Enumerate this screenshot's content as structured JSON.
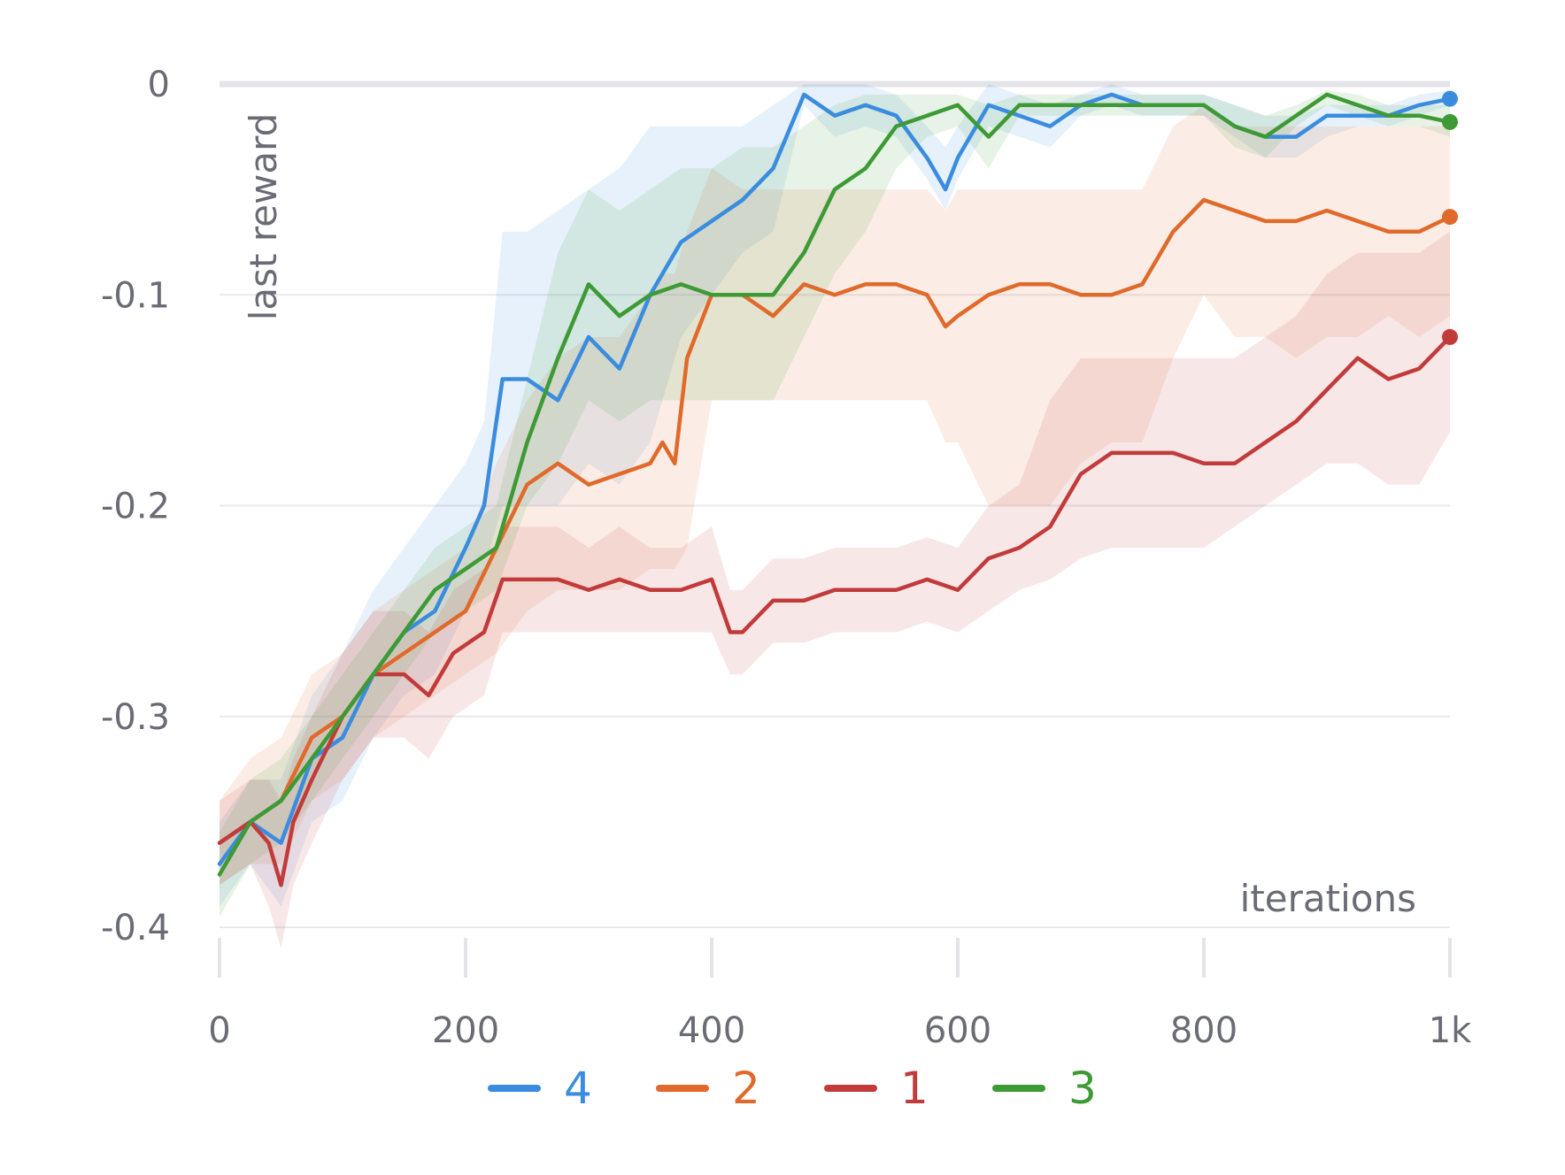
{
  "chart_data": {
    "type": "line",
    "xlabel": "iterations",
    "ylabel": "last reward",
    "xlim": [
      0,
      1000
    ],
    "ylim": [
      -0.4,
      0
    ],
    "x_ticks": [
      0,
      200,
      400,
      600,
      800,
      1000
    ],
    "x_tick_labels": [
      "0",
      "200",
      "400",
      "600",
      "800",
      "1k"
    ],
    "y_ticks": [
      0,
      -0.1,
      -0.2,
      -0.3,
      -0.4
    ],
    "y_tick_labels": [
      "0",
      "-0.1",
      "-0.2",
      "-0.3",
      "-0.4"
    ],
    "grid": true,
    "legend": "bottom-center",
    "series": [
      {
        "name": "4",
        "color": "#3a8dde",
        "x": [
          0,
          25,
          50,
          75,
          100,
          125,
          150,
          175,
          200,
          215,
          230,
          250,
          275,
          300,
          325,
          350,
          375,
          400,
          425,
          450,
          475,
          500,
          525,
          550,
          575,
          590,
          600,
          625,
          650,
          675,
          700,
          725,
          750,
          775,
          800,
          825,
          850,
          875,
          900,
          925,
          950,
          975,
          1000
        ],
        "y": [
          -0.37,
          -0.35,
          -0.36,
          -0.32,
          -0.31,
          -0.28,
          -0.26,
          -0.25,
          -0.22,
          -0.2,
          -0.14,
          -0.14,
          -0.15,
          -0.12,
          -0.135,
          -0.1,
          -0.075,
          -0.065,
          -0.055,
          -0.04,
          -0.005,
          -0.015,
          -0.01,
          -0.015,
          -0.035,
          -0.05,
          -0.035,
          -0.01,
          -0.015,
          -0.02,
          -0.01,
          -0.005,
          -0.01,
          -0.01,
          -0.01,
          -0.02,
          -0.025,
          -0.025,
          -0.015,
          -0.015,
          -0.015,
          -0.01,
          -0.007
        ],
        "band_upper": [
          -0.35,
          -0.33,
          -0.33,
          -0.29,
          -0.27,
          -0.24,
          -0.22,
          -0.2,
          -0.18,
          -0.16,
          -0.07,
          -0.07,
          -0.06,
          -0.05,
          -0.04,
          -0.02,
          -0.02,
          -0.02,
          -0.02,
          -0.01,
          0,
          0,
          0,
          -0.005,
          -0.02,
          -0.03,
          -0.02,
          0,
          -0.005,
          -0.01,
          -0.005,
          0,
          -0.005,
          -0.005,
          -0.005,
          -0.01,
          -0.015,
          -0.015,
          -0.01,
          -0.01,
          -0.01,
          -0.005,
          -0.003
        ],
        "band_lower": [
          -0.39,
          -0.37,
          -0.39,
          -0.35,
          -0.34,
          -0.31,
          -0.29,
          -0.28,
          -0.25,
          -0.23,
          -0.2,
          -0.2,
          -0.2,
          -0.18,
          -0.19,
          -0.17,
          -0.12,
          -0.1,
          -0.08,
          -0.07,
          -0.01,
          -0.025,
          -0.02,
          -0.025,
          -0.045,
          -0.06,
          -0.045,
          -0.02,
          -0.025,
          -0.03,
          -0.015,
          -0.01,
          -0.015,
          -0.015,
          -0.015,
          -0.025,
          -0.035,
          -0.035,
          -0.025,
          -0.02,
          -0.02,
          -0.015,
          -0.01
        ]
      },
      {
        "name": "2",
        "color": "#e06a2b",
        "x": [
          0,
          25,
          50,
          75,
          100,
          125,
          150,
          175,
          200,
          225,
          250,
          275,
          300,
          325,
          350,
          360,
          370,
          380,
          400,
          425,
          450,
          475,
          500,
          525,
          550,
          575,
          590,
          600,
          625,
          650,
          675,
          700,
          725,
          750,
          775,
          800,
          825,
          850,
          875,
          900,
          925,
          950,
          975,
          1000
        ],
        "y": [
          -0.36,
          -0.35,
          -0.34,
          -0.31,
          -0.3,
          -0.28,
          -0.27,
          -0.26,
          -0.25,
          -0.22,
          -0.19,
          -0.18,
          -0.19,
          -0.185,
          -0.18,
          -0.17,
          -0.18,
          -0.13,
          -0.1,
          -0.1,
          -0.11,
          -0.095,
          -0.1,
          -0.095,
          -0.095,
          -0.1,
          -0.115,
          -0.11,
          -0.1,
          -0.095,
          -0.095,
          -0.1,
          -0.1,
          -0.095,
          -0.07,
          -0.055,
          -0.06,
          -0.065,
          -0.065,
          -0.06,
          -0.065,
          -0.07,
          -0.07,
          -0.063
        ],
        "band_upper": [
          -0.34,
          -0.32,
          -0.31,
          -0.28,
          -0.27,
          -0.25,
          -0.24,
          -0.23,
          -0.22,
          -0.18,
          -0.15,
          -0.13,
          -0.12,
          -0.12,
          -0.1,
          -0.09,
          -0.09,
          -0.07,
          -0.04,
          -0.05,
          -0.05,
          -0.05,
          -0.05,
          -0.05,
          -0.05,
          -0.05,
          -0.06,
          -0.05,
          -0.05,
          -0.05,
          -0.05,
          -0.05,
          -0.05,
          -0.05,
          -0.02,
          -0.01,
          -0.02,
          -0.02,
          -0.02,
          -0.02,
          -0.02,
          -0.02,
          -0.02,
          -0.02
        ],
        "band_lower": [
          -0.38,
          -0.37,
          -0.37,
          -0.34,
          -0.33,
          -0.31,
          -0.3,
          -0.29,
          -0.28,
          -0.27,
          -0.25,
          -0.24,
          -0.24,
          -0.24,
          -0.23,
          -0.23,
          -0.23,
          -0.22,
          -0.15,
          -0.15,
          -0.15,
          -0.15,
          -0.15,
          -0.15,
          -0.15,
          -0.15,
          -0.17,
          -0.17,
          -0.2,
          -0.2,
          -0.2,
          -0.18,
          -0.17,
          -0.17,
          -0.13,
          -0.1,
          -0.12,
          -0.12,
          -0.13,
          -0.12,
          -0.12,
          -0.11,
          -0.12,
          -0.11
        ]
      },
      {
        "name": "1",
        "color": "#c23b3b",
        "x": [
          0,
          25,
          40,
          50,
          60,
          75,
          100,
          125,
          150,
          170,
          190,
          215,
          230,
          245,
          275,
          300,
          325,
          350,
          375,
          400,
          415,
          425,
          450,
          475,
          500,
          525,
          550,
          575,
          600,
          625,
          650,
          675,
          700,
          725,
          750,
          775,
          800,
          825,
          850,
          875,
          900,
          925,
          950,
          975,
          1000
        ],
        "y": [
          -0.36,
          -0.35,
          -0.36,
          -0.38,
          -0.35,
          -0.33,
          -0.3,
          -0.28,
          -0.28,
          -0.29,
          -0.27,
          -0.26,
          -0.235,
          -0.235,
          -0.235,
          -0.24,
          -0.235,
          -0.24,
          -0.24,
          -0.235,
          -0.26,
          -0.26,
          -0.245,
          -0.245,
          -0.24,
          -0.24,
          -0.24,
          -0.235,
          -0.24,
          -0.225,
          -0.22,
          -0.21,
          -0.185,
          -0.175,
          -0.175,
          -0.175,
          -0.18,
          -0.18,
          -0.17,
          -0.16,
          -0.145,
          -0.13,
          -0.14,
          -0.135,
          -0.12
        ],
        "band_upper": [
          -0.34,
          -0.33,
          -0.33,
          -0.34,
          -0.32,
          -0.3,
          -0.27,
          -0.25,
          -0.25,
          -0.26,
          -0.24,
          -0.23,
          -0.21,
          -0.21,
          -0.21,
          -0.22,
          -0.21,
          -0.22,
          -0.22,
          -0.21,
          -0.24,
          -0.24,
          -0.225,
          -0.225,
          -0.22,
          -0.22,
          -0.22,
          -0.215,
          -0.22,
          -0.2,
          -0.19,
          -0.15,
          -0.13,
          -0.13,
          -0.13,
          -0.13,
          -0.13,
          -0.13,
          -0.12,
          -0.11,
          -0.09,
          -0.08,
          -0.08,
          -0.08,
          -0.07
        ],
        "band_lower": [
          -0.38,
          -0.37,
          -0.39,
          -0.41,
          -0.38,
          -0.36,
          -0.33,
          -0.31,
          -0.31,
          -0.32,
          -0.3,
          -0.29,
          -0.26,
          -0.26,
          -0.26,
          -0.26,
          -0.26,
          -0.26,
          -0.26,
          -0.26,
          -0.28,
          -0.28,
          -0.265,
          -0.265,
          -0.26,
          -0.26,
          -0.26,
          -0.255,
          -0.26,
          -0.25,
          -0.24,
          -0.235,
          -0.225,
          -0.22,
          -0.22,
          -0.22,
          -0.22,
          -0.21,
          -0.2,
          -0.19,
          -0.18,
          -0.18,
          -0.19,
          -0.19,
          -0.165
        ]
      },
      {
        "name": "3",
        "color": "#3d9a35",
        "x": [
          0,
          25,
          50,
          75,
          100,
          125,
          150,
          175,
          200,
          225,
          250,
          275,
          300,
          325,
          350,
          375,
          400,
          425,
          450,
          475,
          500,
          525,
          550,
          575,
          600,
          625,
          650,
          675,
          700,
          725,
          750,
          775,
          800,
          825,
          850,
          875,
          900,
          925,
          950,
          975,
          1000
        ],
        "y": [
          -0.375,
          -0.35,
          -0.34,
          -0.32,
          -0.3,
          -0.28,
          -0.26,
          -0.24,
          -0.23,
          -0.22,
          -0.17,
          -0.13,
          -0.095,
          -0.11,
          -0.1,
          -0.095,
          -0.1,
          -0.1,
          -0.1,
          -0.08,
          -0.05,
          -0.04,
          -0.02,
          -0.015,
          -0.01,
          -0.025,
          -0.01,
          -0.01,
          -0.01,
          -0.01,
          -0.01,
          -0.01,
          -0.01,
          -0.02,
          -0.025,
          -0.015,
          -0.005,
          -0.01,
          -0.015,
          -0.015,
          -0.018
        ],
        "band_upper": [
          -0.355,
          -0.33,
          -0.32,
          -0.3,
          -0.28,
          -0.26,
          -0.24,
          -0.22,
          -0.21,
          -0.2,
          -0.14,
          -0.08,
          -0.05,
          -0.06,
          -0.05,
          -0.04,
          -0.04,
          -0.03,
          -0.03,
          -0.02,
          -0.01,
          -0.005,
          -0.005,
          -0.005,
          -0.005,
          -0.01,
          -0.005,
          -0.005,
          -0.005,
          -0.005,
          -0.005,
          -0.005,
          -0.005,
          -0.01,
          -0.015,
          -0.01,
          -0.003,
          -0.005,
          -0.01,
          -0.01,
          -0.01
        ],
        "band_lower": [
          -0.395,
          -0.37,
          -0.36,
          -0.34,
          -0.32,
          -0.3,
          -0.28,
          -0.26,
          -0.25,
          -0.24,
          -0.2,
          -0.18,
          -0.15,
          -0.16,
          -0.15,
          -0.15,
          -0.15,
          -0.15,
          -0.15,
          -0.12,
          -0.09,
          -0.07,
          -0.04,
          -0.025,
          -0.02,
          -0.04,
          -0.015,
          -0.015,
          -0.015,
          -0.015,
          -0.015,
          -0.015,
          -0.015,
          -0.03,
          -0.035,
          -0.02,
          -0.01,
          -0.015,
          -0.02,
          -0.02,
          -0.025
        ]
      }
    ]
  }
}
